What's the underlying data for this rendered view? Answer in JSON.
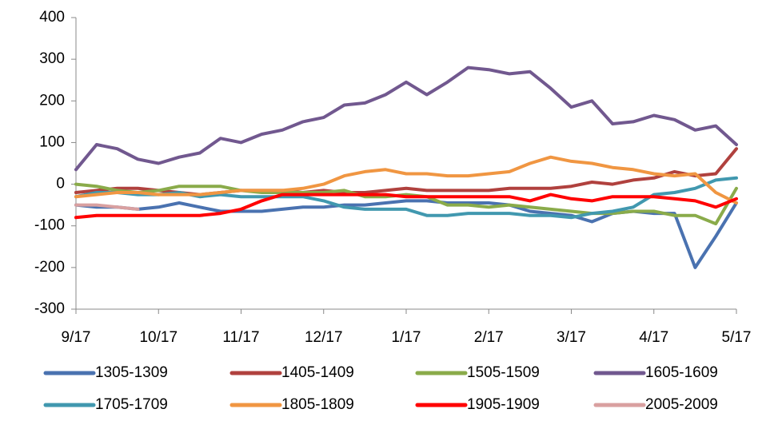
{
  "chart_data": {
    "type": "line",
    "categories": [
      "9/17",
      null,
      null,
      null,
      "10/17",
      null,
      null,
      null,
      "11/17",
      null,
      null,
      null,
      "12/17",
      null,
      null,
      null,
      "1/17",
      null,
      null,
      null,
      "2/17",
      null,
      null,
      null,
      "3/17",
      null,
      null,
      null,
      "4/17",
      null,
      null,
      null,
      "5/17"
    ],
    "ylim": [
      -300,
      400
    ],
    "yticks": [
      -300,
      -200,
      -100,
      0,
      100,
      200,
      300,
      400
    ],
    "legend": "bottom",
    "series": [
      {
        "name": "1305-1309",
        "color": "#4a72b0",
        "values": [
          -50,
          -55,
          -55,
          -60,
          -55,
          -45,
          -55,
          -65,
          -65,
          -65,
          -60,
          -55,
          -55,
          -50,
          -50,
          -45,
          -40,
          -40,
          -45,
          -45,
          -45,
          -50,
          -65,
          -70,
          -75,
          -90,
          -70,
          -65,
          -70,
          -70,
          -200,
          -125,
          -45
        ]
      },
      {
        "name": "1405-1409",
        "color": "#b0413e",
        "values": [
          -20,
          -15,
          -10,
          -10,
          -15,
          -20,
          -25,
          -20,
          -15,
          -15,
          -15,
          -20,
          -15,
          -20,
          -20,
          -15,
          -10,
          -15,
          -15,
          -15,
          -15,
          -10,
          -10,
          -10,
          -5,
          5,
          0,
          10,
          15,
          30,
          20,
          25,
          85
        ]
      },
      {
        "name": "1505-1509",
        "color": "#8aab4a",
        "values": [
          0,
          -5,
          -15,
          -20,
          -15,
          -5,
          -5,
          -5,
          -15,
          -20,
          -20,
          -20,
          -20,
          -15,
          -30,
          -30,
          -25,
          -30,
          -50,
          -50,
          -55,
          -50,
          -55,
          -60,
          -65,
          -70,
          -70,
          -65,
          -65,
          -75,
          -75,
          -95,
          -10
        ]
      },
      {
        "name": "1605-1609",
        "color": "#71588f",
        "values": [
          35,
          95,
          85,
          60,
          50,
          65,
          75,
          110,
          100,
          120,
          130,
          150,
          160,
          190,
          195,
          215,
          245,
          215,
          245,
          280,
          275,
          265,
          270,
          230,
          185,
          200,
          145,
          150,
          165,
          155,
          130,
          140,
          95
        ]
      },
      {
        "name": "1705-1709",
        "color": "#4198af",
        "values": [
          -30,
          -20,
          -20,
          -25,
          -25,
          -20,
          -30,
          -25,
          -30,
          -30,
          -30,
          -30,
          -40,
          -55,
          -60,
          -60,
          -60,
          -75,
          -75,
          -70,
          -70,
          -70,
          -75,
          -75,
          -80,
          -70,
          -65,
          -55,
          -25,
          -20,
          -10,
          10,
          15
        ]
      },
      {
        "name": "1805-1809",
        "color": "#f09642",
        "values": [
          -30,
          -25,
          -20,
          -20,
          -25,
          -25,
          -25,
          -20,
          -15,
          -15,
          -15,
          -10,
          0,
          20,
          30,
          35,
          25,
          25,
          20,
          20,
          25,
          30,
          50,
          65,
          55,
          50,
          40,
          35,
          25,
          20,
          25,
          -20,
          -45
        ]
      },
      {
        "name": "1905-1909",
        "color": "#ff0000",
        "values": [
          -80,
          -75,
          -75,
          -75,
          -75,
          -75,
          -75,
          -70,
          -60,
          -40,
          -25,
          -25,
          -25,
          -25,
          -25,
          -25,
          -30,
          -30,
          -30,
          -30,
          -30,
          -30,
          -40,
          -25,
          -35,
          -40,
          -30,
          -30,
          -30,
          -35,
          -40,
          -55,
          -35
        ]
      },
      {
        "name": "2005-2009",
        "color": "#d9a0a0",
        "values": [
          -50,
          -50,
          -55,
          -60,
          null,
          null,
          null,
          null,
          null,
          null,
          null,
          null,
          null,
          null,
          null,
          null,
          null,
          null,
          null,
          null,
          null,
          null,
          null,
          null,
          null,
          null,
          null,
          null,
          null,
          null,
          null,
          null,
          null
        ]
      }
    ]
  }
}
